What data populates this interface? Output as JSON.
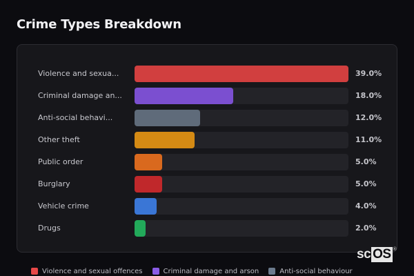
{
  "title": "Crime Types Breakdown",
  "rows": [
    {
      "label": "Violence and sexua...",
      "full_label": "Violence and sexual offences",
      "percent_label": "39.0%",
      "value": 39.0,
      "color": "#d13f3f"
    },
    {
      "label": "Criminal damage an...",
      "full_label": "Criminal damage and arson",
      "percent_label": "18.0%",
      "value": 18.0,
      "color": "#7b4fd0"
    },
    {
      "label": "Anti-social behavi...",
      "full_label": "Anti-social behaviour",
      "percent_label": "12.0%",
      "value": 12.0,
      "color": "#5f6b7a"
    },
    {
      "label": "Other theft",
      "full_label": "Other theft",
      "percent_label": "11.0%",
      "value": 11.0,
      "color": "#d48a14"
    },
    {
      "label": "Public order",
      "full_label": "Public order",
      "percent_label": "5.0%",
      "value": 5.0,
      "color": "#d9691e"
    },
    {
      "label": "Burglary",
      "full_label": "Burglary",
      "percent_label": "5.0%",
      "value": 5.0,
      "color": "#c0282b"
    },
    {
      "label": "Vehicle crime",
      "full_label": "Vehicle crime",
      "percent_label": "4.0%",
      "value": 4.0,
      "color": "#3a76d6"
    },
    {
      "label": "Drugs",
      "full_label": "Drugs",
      "percent_label": "2.0%",
      "value": 2.0,
      "color": "#22a95a"
    }
  ],
  "legend": [
    {
      "label": "Violence and sexual offences",
      "color": "#e84848"
    },
    {
      "label": "Criminal damage and arson",
      "color": "#8a5ce6"
    },
    {
      "label": "Anti-social behaviour",
      "color": "#6c7b8e"
    }
  ],
  "watermark": {
    "prefix": "sc",
    "boxed": "OS",
    "mark": "®"
  },
  "chart_data": {
    "type": "bar",
    "orientation": "horizontal",
    "title": "Crime Types Breakdown",
    "categories": [
      "Violence and sexual offences",
      "Criminal damage and arson",
      "Anti-social behaviour",
      "Other theft",
      "Public order",
      "Burglary",
      "Vehicle crime",
      "Drugs"
    ],
    "values": [
      39.0,
      18.0,
      12.0,
      11.0,
      5.0,
      5.0,
      4.0,
      2.0
    ],
    "value_labels": [
      "39.0%",
      "18.0%",
      "12.0%",
      "11.0%",
      "5.0%",
      "5.0%",
      "4.0%",
      "2.0%"
    ],
    "unit": "%",
    "xlabel": "",
    "ylabel": "",
    "xlim": [
      0,
      39
    ],
    "grid": false,
    "legend_position": "bottom"
  }
}
